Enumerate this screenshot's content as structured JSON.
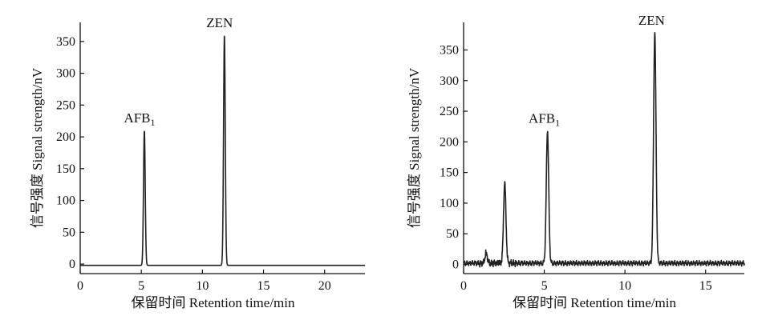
{
  "chart_data": [
    {
      "type": "line",
      "title": "",
      "xlabel": "保留时间  Retention time/min",
      "ylabel": "信号强度  Signal strength/nV",
      "xlim": [
        0,
        23.3
      ],
      "ylim": [
        -15,
        380
      ],
      "xticks": [
        0,
        5,
        10,
        15,
        20
      ],
      "yticks": [
        0,
        50,
        100,
        150,
        200,
        250,
        300,
        350
      ],
      "grid": false,
      "baseline": -2,
      "peaks": [
        {
          "x": 5.25,
          "y": 210,
          "label": "AFB",
          "subscript": "1"
        },
        {
          "x": 11.8,
          "y": 360,
          "label": "ZEN",
          "subscript": ""
        }
      ]
    },
    {
      "type": "line",
      "title": "",
      "xlabel": "保留时间  Retention time/min",
      "ylabel": "信号强度  Signal strength/nV",
      "xlim": [
        0,
        17.4
      ],
      "ylim": [
        -15,
        395
      ],
      "xticks": [
        0,
        5,
        10,
        15
      ],
      "yticks": [
        0,
        50,
        100,
        150,
        200,
        250,
        300,
        350
      ],
      "grid": false,
      "baseline": 2,
      "peaks": [
        {
          "x": 1.4,
          "y": 18,
          "label": "",
          "subscript": ""
        },
        {
          "x": 2.55,
          "y": 133,
          "label": "",
          "subscript": ""
        },
        {
          "x": 5.2,
          "y": 218,
          "label": "AFB",
          "subscript": "1"
        },
        {
          "x": 11.85,
          "y": 378,
          "label": "ZEN",
          "subscript": ""
        }
      ]
    }
  ]
}
